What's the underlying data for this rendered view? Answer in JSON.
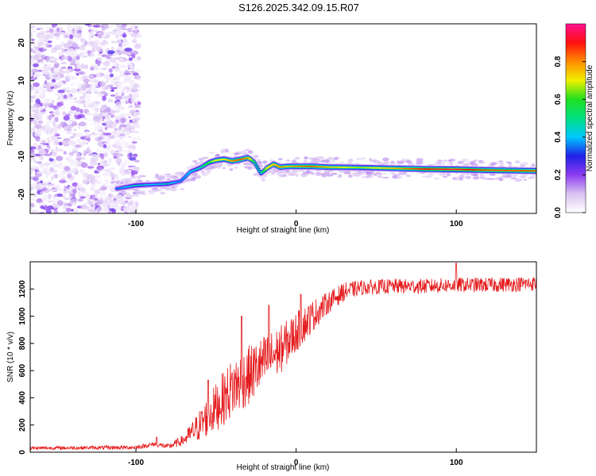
{
  "title": "S126.2025.342.09.15.R07",
  "chart_data": [
    {
      "type": "heatmap",
      "name": "spectrogram",
      "xlabel": "Height of straight line (km)",
      "ylabel": "Frequency (Hz)",
      "xlim": [
        -166,
        150
      ],
      "ylim": [
        -25,
        25
      ],
      "x_ticks": [
        {
          "value": -100,
          "label": "-100"
        },
        {
          "value": 0,
          "label": "0"
        },
        {
          "value": 100,
          "label": "100"
        }
      ],
      "y_ticks": [
        {
          "value": -20,
          "label": "-20"
        },
        {
          "value": -10,
          "label": "-10"
        },
        {
          "value": 0,
          "label": "0"
        },
        {
          "value": 10,
          "label": "10"
        },
        {
          "value": 20,
          "label": "20"
        }
      ],
      "ridge": {
        "x": [
          -112,
          -100,
          -90,
          -80,
          -72,
          -66,
          -60,
          -54,
          -50,
          -45,
          -40,
          -35,
          -30,
          -26,
          -22,
          -18,
          -14,
          -10,
          -5,
          0,
          10,
          20,
          40,
          60,
          80,
          100,
          120,
          150
        ],
        "freq": [
          -18.5,
          -17.6,
          -17.4,
          -17.2,
          -16.5,
          -14.0,
          -13.0,
          -11.5,
          -11.0,
          -10.7,
          -11.2,
          -10.8,
          -10.3,
          -11.5,
          -14.5,
          -13.0,
          -12.0,
          -12.8,
          -12.6,
          -12.6,
          -12.6,
          -12.8,
          -12.9,
          -13.1,
          -13.3,
          -13.4,
          -13.6,
          -13.8
        ],
        "amplitude": [
          0.35,
          0.45,
          0.4,
          0.45,
          0.35,
          0.4,
          0.45,
          0.6,
          0.7,
          0.7,
          0.8,
          0.85,
          0.8,
          0.5,
          0.45,
          0.7,
          0.75,
          0.8,
          0.75,
          0.8,
          0.85,
          0.75,
          0.65,
          0.75,
          0.9,
          0.95,
          0.85,
          0.85
        ]
      },
      "noise_region": {
        "x_min": -166,
        "x_max": -98,
        "amplitude_max": 0.25
      },
      "colorbar": {
        "label": "Normalized spectral amplitude",
        "range": [
          0,
          1
        ],
        "ticks": [
          {
            "value": 0.0,
            "label": "0.0"
          },
          {
            "value": 0.2,
            "label": "0.2"
          },
          {
            "value": 0.4,
            "label": "0.4"
          },
          {
            "value": 0.6,
            "label": "0.6"
          },
          {
            "value": 0.8,
            "label": "0.8"
          }
        ],
        "colors": [
          "#ffffff",
          "#d9c2f2",
          "#8c3cf0",
          "#2020e6",
          "#00c8ff",
          "#00e080",
          "#20e020",
          "#f0f000",
          "#ff8c00",
          "#ff1010",
          "#ff1090"
        ]
      }
    },
    {
      "type": "line",
      "name": "snr-plot",
      "xlabel": "Height of straight line (km)",
      "ylabel": "SNR (10 * v/v)",
      "xlim": [
        -166,
        150
      ],
      "ylim": [
        0,
        1400
      ],
      "color": "#e41a1c",
      "x_ticks": [
        {
          "value": -100,
          "label": "-100"
        },
        {
          "value": 0,
          "label": "0"
        },
        {
          "value": 100,
          "label": "100"
        }
      ],
      "y_ticks": [
        {
          "value": 0,
          "label": "0"
        },
        {
          "value": 200,
          "label": "200"
        },
        {
          "value": 400,
          "label": "400"
        },
        {
          "value": 600,
          "label": "600"
        },
        {
          "value": 800,
          "label": "800"
        },
        {
          "value": 1000,
          "label": "1000"
        },
        {
          "value": 1200,
          "label": "1200"
        }
      ],
      "trend": {
        "x": [
          -166,
          -100,
          -88,
          -80,
          -70,
          -60,
          -50,
          -40,
          -30,
          -20,
          -10,
          0,
          10,
          20,
          30,
          40,
          60,
          80,
          100,
          120,
          150
        ],
        "snr": [
          30,
          35,
          60,
          40,
          90,
          200,
          330,
          470,
          560,
          660,
          750,
          880,
          1000,
          1100,
          1180,
          1210,
          1220,
          1220,
          1230,
          1230,
          1240
        ]
      },
      "jitter": {
        "x": [
          -166,
          -100,
          -80,
          -70,
          -60,
          -50,
          -40,
          -30,
          -20,
          -10,
          0,
          10,
          20,
          40,
          80,
          150
        ],
        "spread": [
          12,
          15,
          20,
          40,
          120,
          180,
          220,
          220,
          200,
          180,
          150,
          120,
          80,
          55,
          55,
          55
        ]
      },
      "peaks": [
        {
          "x": -87,
          "snr": 110
        },
        {
          "x": -55,
          "snr": 530
        },
        {
          "x": -34,
          "snr": 1000
        },
        {
          "x": -17,
          "snr": 1080
        },
        {
          "x": 3,
          "snr": 1160
        },
        {
          "x": 100,
          "snr": 1390
        }
      ]
    }
  ]
}
